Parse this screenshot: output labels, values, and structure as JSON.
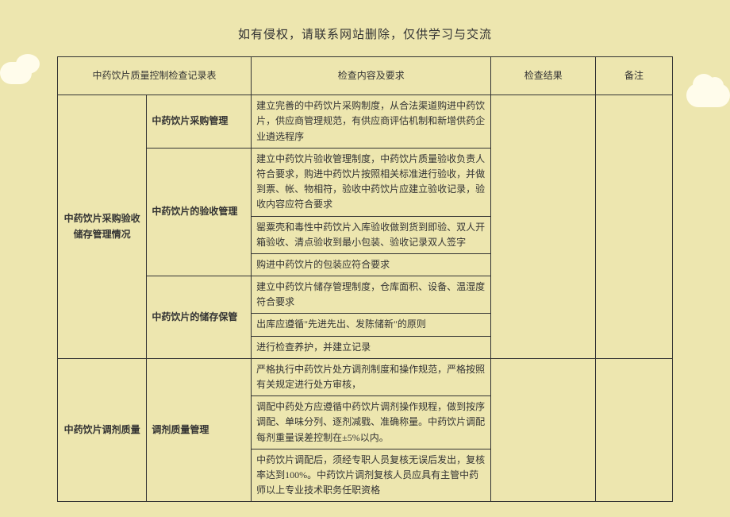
{
  "header": {
    "disclaimer": "如有侵权，请联系网站删除，仅供学习与交流"
  },
  "table": {
    "title": "中药饮片质量控制检查记录表",
    "columns": {
      "content": "检查内容及要求",
      "result": "检查结果",
      "remark": "备注"
    },
    "sections": [
      {
        "label": "中药饮片采购验收储存管理情况",
        "subsections": [
          {
            "label": "中药饮片采购管理",
            "items": [
              "建立完善的中药饮片采购制度，从合法渠道购进中药饮片，供应商管理规范，有供应商评估机制和新增供药企业遴选程序"
            ]
          },
          {
            "label": "中药饮片的验收管理",
            "items": [
              "建立中药饮片验收管理制度，中药饮片质量验收负责人符合要求，购进中药饮片按照相关标准进行验收，并做到票、帐、物相符，验收中药饮片应建立验收记录，验收内容应符合要求",
              "罂粟壳和毒性中药饮片入库验收做到货到即验、双人开箱验收、清点验收到最小包装、验收记录双人签字",
              "购进中药饮片的包装应符合要求"
            ]
          },
          {
            "label": "中药饮片的储存保管",
            "items": [
              "建立中药饮片储存管理制度，仓库面积、设备、温湿度符合要求",
              "出库应遵循\"先进先出、发陈储新\"的原则",
              "进行检查养护，并建立记录"
            ]
          }
        ]
      },
      {
        "label": "中药饮片调剂质量",
        "subsections": [
          {
            "label": "调剂质量管理",
            "items": [
              "严格执行中药饮片处方调剂制度和操作规范，严格按照有关规定进行处方审核，",
              "调配中药处方应遵循中药饮片调剂操作规程，做到按序调配、单味分列、逐剂减戥、准确称量。中药饮片调配每剂重量误差控制在±5%以内。",
              "中药饮片调配后，须经专职人员复核无误后发出，复核率达到100%。中药饮片调剂复核人员应具有主管中药师以上专业技术职务任职资格"
            ]
          }
        ]
      }
    ]
  },
  "styling": {
    "background_color": "#ede6af",
    "border_color": "#333333",
    "text_color": "#333333",
    "cloud_color": "#fffceb",
    "header_fontsize": 15,
    "cell_fontsize": 12
  }
}
